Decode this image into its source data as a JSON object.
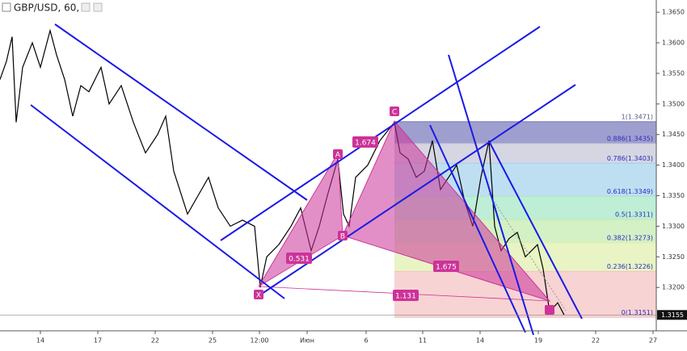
{
  "chart_data": {
    "type": "line",
    "title": "GBP/USD, 60,",
    "x": [
      0,
      8,
      15,
      20,
      28,
      40,
      50,
      62,
      70,
      80,
      90,
      100,
      110,
      125,
      135,
      150,
      165,
      180,
      195,
      205,
      215,
      232,
      245,
      258,
      270,
      285,
      300,
      315,
      322,
      330,
      345,
      360,
      372,
      385,
      395,
      405,
      418,
      425,
      432,
      440,
      455,
      470,
      488,
      495,
      505,
      515,
      525,
      535,
      545,
      555,
      565,
      575,
      585,
      595,
      605,
      612,
      620,
      630,
      640,
      650,
      665,
      672,
      680,
      690,
      698
    ],
    "series": [
      {
        "name": "GBP/USD",
        "color": "#000000",
        "values": [
          1.354,
          1.357,
          1.361,
          1.347,
          1.356,
          1.36,
          1.356,
          1.362,
          1.358,
          1.354,
          1.348,
          1.353,
          1.352,
          1.356,
          1.35,
          1.353,
          1.347,
          1.342,
          1.345,
          1.348,
          1.339,
          1.332,
          1.335,
          1.338,
          1.333,
          1.33,
          1.331,
          1.33,
          1.32,
          1.325,
          1.327,
          1.33,
          1.333,
          1.326,
          1.33,
          1.335,
          1.341,
          1.332,
          1.33,
          1.338,
          1.34,
          1.344,
          1.347,
          1.342,
          1.341,
          1.338,
          1.339,
          1.344,
          1.336,
          1.338,
          1.34,
          1.334,
          1.33,
          1.338,
          1.344,
          1.33,
          1.326,
          1.328,
          1.329,
          1.325,
          1.327,
          1.323,
          1.316,
          1.3175,
          1.3155
        ]
      }
    ],
    "xlim": [
      0,
      812
    ],
    "xticks": [
      {
        "value": 50,
        "label": "14"
      },
      {
        "value": 121,
        "label": "17"
      },
      {
        "value": 192,
        "label": "22"
      },
      {
        "value": 263,
        "label": "25"
      },
      {
        "value": 321,
        "label": "12:00"
      },
      {
        "value": 380,
        "label": "Июн"
      },
      {
        "value": 453,
        "label": "6"
      },
      {
        "value": 523,
        "label": "11"
      },
      {
        "value": 594,
        "label": "14"
      },
      {
        "value": 666,
        "label": "19"
      },
      {
        "value": 737,
        "label": "22"
      },
      {
        "value": 808,
        "label": "27"
      }
    ],
    "ylim": [
      1.3129,
      1.367
    ],
    "yticks": [
      {
        "value": 1.365,
        "label": "1.3650"
      },
      {
        "value": 1.36,
        "label": "1.3600"
      },
      {
        "value": 1.355,
        "label": "1.3550"
      },
      {
        "value": 1.35,
        "label": "1.3500"
      },
      {
        "value": 1.345,
        "label": "1.3450"
      },
      {
        "value": 1.34,
        "label": "1.3400"
      },
      {
        "value": 1.335,
        "label": "1.3350"
      },
      {
        "value": 1.33,
        "label": "1.3300"
      },
      {
        "value": 1.325,
        "label": "1.3250"
      },
      {
        "value": 1.32,
        "label": "1.3200"
      }
    ],
    "last_price": {
      "value": 1.3155,
      "label": "1.3155"
    },
    "fib_levels": [
      {
        "value": 1.3471,
        "label": "1(1.3471)",
        "color": "#7f7fbf"
      },
      {
        "value": 1.3435,
        "label": "0.886(1.3435)",
        "color": "#c8c8d8"
      },
      {
        "value": 1.3403,
        "label": "0.786(1.3403)",
        "color": "#a8d4ee"
      },
      {
        "value": 1.3349,
        "label": "0.618(1.3349)",
        "color": "#a8e8c8"
      },
      {
        "value": 1.3311,
        "label": "0.5(1.3311)",
        "color": "#c4ecb0"
      },
      {
        "value": 1.3273,
        "label": "0.382(1.3273)",
        "color": "#e0f0b0"
      },
      {
        "value": 1.3226,
        "label": "0.236(1.3226)",
        "color": "#f4c4c4"
      },
      {
        "value": 1.3151,
        "label": "0(1.3151)",
        "color": "#f4c4c4"
      }
    ],
    "pattern_points": [
      "X",
      "A",
      "B",
      "C"
    ],
    "pattern_ratios": [
      "0.531",
      "1.674",
      "1.675",
      "1.131"
    ]
  }
}
